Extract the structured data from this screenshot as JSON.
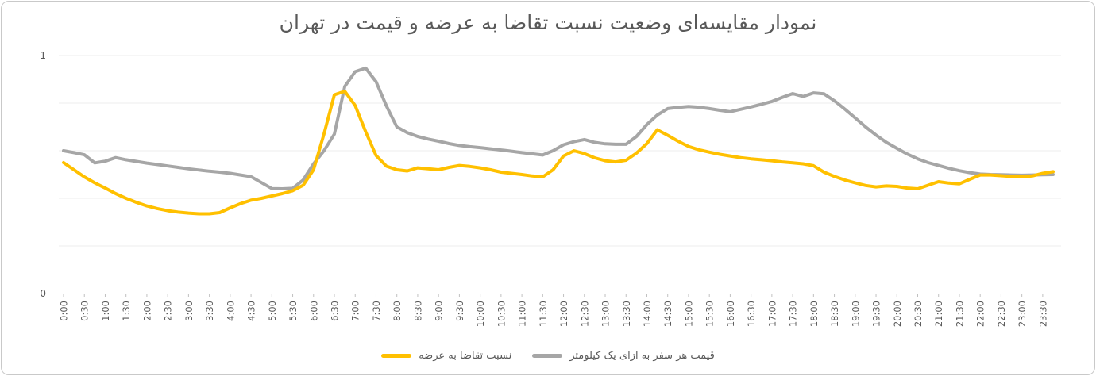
{
  "chart_data": {
    "type": "line",
    "title": "نمودار مقایسه‌ای وضعیت نسبت تقاضا به عرضه و قیمت در تهران",
    "xlabel": "",
    "ylabel": "",
    "ylim": [
      0,
      1
    ],
    "y_tick_labels": [
      "1",
      "0"
    ],
    "grid": "horizontal gridlines every 0.2, only 0 and 1 labeled",
    "legend_position": "bottom-center",
    "rtl": true,
    "x_interval_minutes": 15,
    "points_per_label": 2,
    "x_tick_labels": [
      "0:00",
      "0:30",
      "1:00",
      "1:30",
      "2:00",
      "2:30",
      "3:00",
      "3:30",
      "4:00",
      "4:30",
      "5:00",
      "5:30",
      "6:00",
      "6:30",
      "7:00",
      "7:30",
      "8:00",
      "8:30",
      "9:00",
      "9:30",
      "10:00",
      "10:30",
      "11:00",
      "11:30",
      "12:00",
      "12:30",
      "13:00",
      "13:30",
      "14:00",
      "14:30",
      "15:00",
      "15:30",
      "16:00",
      "16:30",
      "17:00",
      "17:30",
      "18:00",
      "18:30",
      "19:00",
      "19:30",
      "20:00",
      "20:30",
      "21:00",
      "21:30",
      "22:00",
      "22:30",
      "23:00",
      "23:30"
    ],
    "series": [
      {
        "name": "قیمت هر سفر به ازای یک کیلومتر",
        "color": "#A6A6A6",
        "values": [
          0.6,
          0.592,
          0.583,
          0.549,
          0.556,
          0.571,
          0.562,
          0.555,
          0.548,
          0.542,
          0.536,
          0.53,
          0.524,
          0.519,
          0.514,
          0.51,
          0.505,
          0.498,
          0.491,
          0.466,
          0.441,
          0.44,
          0.442,
          0.477,
          0.545,
          0.6,
          0.67,
          0.87,
          0.932,
          0.947,
          0.89,
          0.788,
          0.7,
          0.676,
          0.66,
          0.649,
          0.64,
          0.63,
          0.622,
          0.617,
          0.613,
          0.608,
          0.603,
          0.598,
          0.592,
          0.587,
          0.582,
          0.6,
          0.625,
          0.638,
          0.647,
          0.635,
          0.629,
          0.627,
          0.627,
          0.66,
          0.71,
          0.75,
          0.777,
          0.782,
          0.786,
          0.783,
          0.777,
          0.77,
          0.764,
          0.774,
          0.784,
          0.795,
          0.807,
          0.824,
          0.84,
          0.828,
          0.843,
          0.839,
          0.81,
          0.775,
          0.738,
          0.7,
          0.666,
          0.635,
          0.61,
          0.586,
          0.566,
          0.55,
          0.538,
          0.526,
          0.516,
          0.508,
          0.502,
          0.5,
          0.499,
          0.498,
          0.497,
          0.498,
          0.499,
          0.5
        ]
      },
      {
        "name": "نسبت تقاضا به عرضه",
        "color": "#FFC000",
        "values": [
          0.55,
          0.52,
          0.49,
          0.465,
          0.443,
          0.42,
          0.4,
          0.383,
          0.368,
          0.357,
          0.348,
          0.342,
          0.338,
          0.335,
          0.335,
          0.34,
          0.36,
          0.378,
          0.392,
          0.4,
          0.41,
          0.42,
          0.432,
          0.455,
          0.52,
          0.67,
          0.835,
          0.85,
          0.79,
          0.68,
          0.58,
          0.535,
          0.52,
          0.515,
          0.528,
          0.524,
          0.52,
          0.53,
          0.538,
          0.534,
          0.528,
          0.52,
          0.51,
          0.505,
          0.5,
          0.494,
          0.49,
          0.52,
          0.578,
          0.6,
          0.588,
          0.57,
          0.558,
          0.553,
          0.56,
          0.59,
          0.63,
          0.688,
          0.665,
          0.64,
          0.618,
          0.604,
          0.594,
          0.585,
          0.578,
          0.571,
          0.566,
          0.562,
          0.558,
          0.553,
          0.549,
          0.545,
          0.537,
          0.51,
          0.492,
          0.477,
          0.465,
          0.454,
          0.448,
          0.452,
          0.45,
          0.443,
          0.44,
          0.455,
          0.47,
          0.464,
          0.461,
          0.48,
          0.498,
          0.498,
          0.495,
          0.492,
          0.49,
          0.494,
          0.505,
          0.512
        ]
      }
    ],
    "colors": {
      "title_text": "#595959",
      "axis_text": "#595959",
      "gridline": "#ececec",
      "axis_line": "#d9d9d9",
      "tick_mark": "#c0c0c0"
    }
  }
}
